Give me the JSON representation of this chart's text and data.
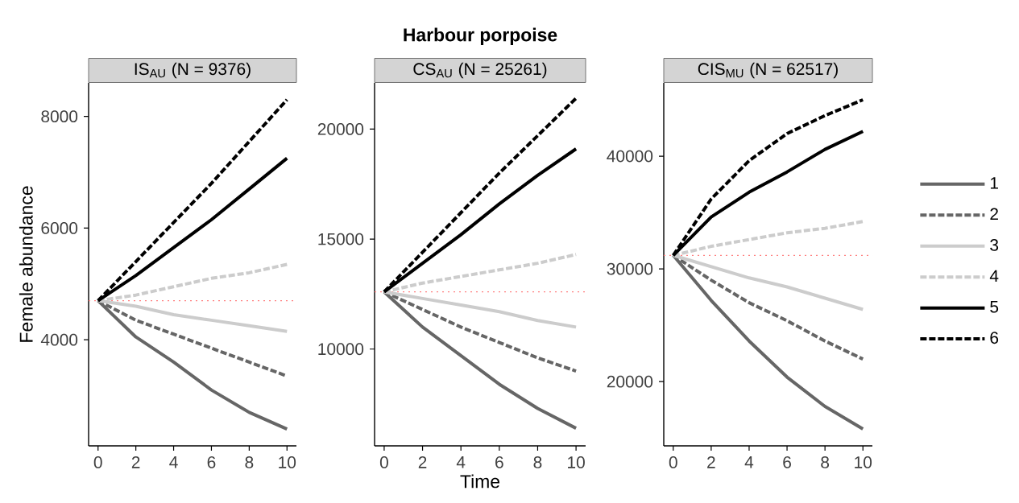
{
  "chart_data": [
    {
      "type": "line",
      "subtitle": "IS$_{AU}$ (N = 9376)",
      "ylabel": "Female abundance",
      "x": [
        0,
        2,
        4,
        6,
        8,
        10
      ],
      "xlim": [
        -0.5,
        10.5
      ],
      "ylim": [
        2100,
        8600
      ],
      "xticks": [
        0,
        2,
        4,
        6,
        8,
        10
      ],
      "yticks": [
        4000,
        6000,
        8000
      ],
      "ref_lines": [
        {
          "axis": "y",
          "value": 4700,
          "color": "#ff8080",
          "line_style": "dotted"
        }
      ],
      "series": [
        {
          "color": "#666666",
          "line_style": "solid",
          "values": [
            4700,
            4050,
            3600,
            3100,
            2700,
            2400
          ]
        },
        {
          "color": "#666666",
          "line_style": "dashed",
          "values": [
            4700,
            4350,
            4100,
            3850,
            3600,
            3350
          ]
        },
        {
          "color": "#cccccc",
          "line_style": "solid",
          "values": [
            4700,
            4600,
            4450,
            4350,
            4250,
            4150
          ]
        },
        {
          "color": "#cccccc",
          "line_style": "dashed",
          "values": [
            4700,
            4800,
            4950,
            5100,
            5200,
            5350
          ]
        },
        {
          "color": "#000000",
          "line_style": "solid",
          "values": [
            4700,
            5150,
            5650,
            6150,
            6700,
            7250
          ]
        },
        {
          "color": "#000000",
          "line_style": "dashed",
          "values": [
            4700,
            5400,
            6100,
            6800,
            7550,
            8300
          ]
        }
      ]
    },
    {
      "type": "line",
      "title": "Harbour porpoise",
      "subtitle": "CS$_{AU}$ (N = 25261)",
      "xlabel": "Time",
      "x": [
        0,
        2,
        4,
        6,
        8,
        10
      ],
      "xlim": [
        -0.5,
        10.5
      ],
      "ylim": [
        5600,
        22100
      ],
      "xticks": [
        0,
        2,
        4,
        6,
        8,
        10
      ],
      "yticks": [
        10000,
        15000,
        20000
      ],
      "ref_lines": [
        {
          "axis": "y",
          "value": 12600,
          "color": "#ff8080",
          "line_style": "dotted"
        }
      ],
      "series": [
        {
          "color": "#666666",
          "line_style": "solid",
          "values": [
            12600,
            11000,
            9700,
            8400,
            7300,
            6400
          ]
        },
        {
          "color": "#666666",
          "line_style": "dashed",
          "values": [
            12600,
            11800,
            11000,
            10300,
            9600,
            9000
          ]
        },
        {
          "color": "#cccccc",
          "line_style": "solid",
          "values": [
            12600,
            12300,
            12000,
            11700,
            11300,
            11000
          ]
        },
        {
          "color": "#cccccc",
          "line_style": "dashed",
          "values": [
            12600,
            13000,
            13300,
            13600,
            13900,
            14300
          ]
        },
        {
          "color": "#000000",
          "line_style": "solid",
          "values": [
            12600,
            13900,
            15200,
            16600,
            17900,
            19100
          ]
        },
        {
          "color": "#000000",
          "line_style": "dashed",
          "values": [
            12600,
            14400,
            16200,
            18000,
            19700,
            21400
          ]
        }
      ]
    },
    {
      "type": "line",
      "subtitle": "CIS$_{MU}$ (N = 62517)",
      "x": [
        0,
        2,
        4,
        6,
        8,
        10
      ],
      "xlim": [
        -0.5,
        10.5
      ],
      "ylim": [
        14300,
        46500
      ],
      "xticks": [
        0,
        2,
        4,
        6,
        8,
        10
      ],
      "yticks": [
        20000,
        30000,
        40000
      ],
      "legend": "right",
      "ref_lines": [
        {
          "axis": "y",
          "value": 31200,
          "color": "#ff8080",
          "line_style": "dotted"
        }
      ],
      "series": [
        {
          "name": "1",
          "color": "#666666",
          "line_style": "solid",
          "values": [
            31200,
            27200,
            23600,
            20400,
            17800,
            15800
          ]
        },
        {
          "name": "2",
          "color": "#666666",
          "line_style": "dashed",
          "values": [
            31200,
            29000,
            27000,
            25400,
            23600,
            22000
          ]
        },
        {
          "name": "3",
          "color": "#cccccc",
          "line_style": "solid",
          "values": [
            31200,
            30200,
            29200,
            28400,
            27400,
            26400
          ]
        },
        {
          "name": "4",
          "color": "#cccccc",
          "line_style": "dashed",
          "values": [
            31200,
            32000,
            32600,
            33200,
            33600,
            34200
          ]
        },
        {
          "name": "5",
          "color": "#000000",
          "line_style": "solid",
          "values": [
            31200,
            34600,
            36800,
            38600,
            40600,
            42200
          ]
        },
        {
          "name": "6",
          "color": "#000000",
          "line_style": "dashed",
          "values": [
            31200,
            36200,
            39600,
            42000,
            43600,
            45000
          ]
        }
      ]
    }
  ]
}
